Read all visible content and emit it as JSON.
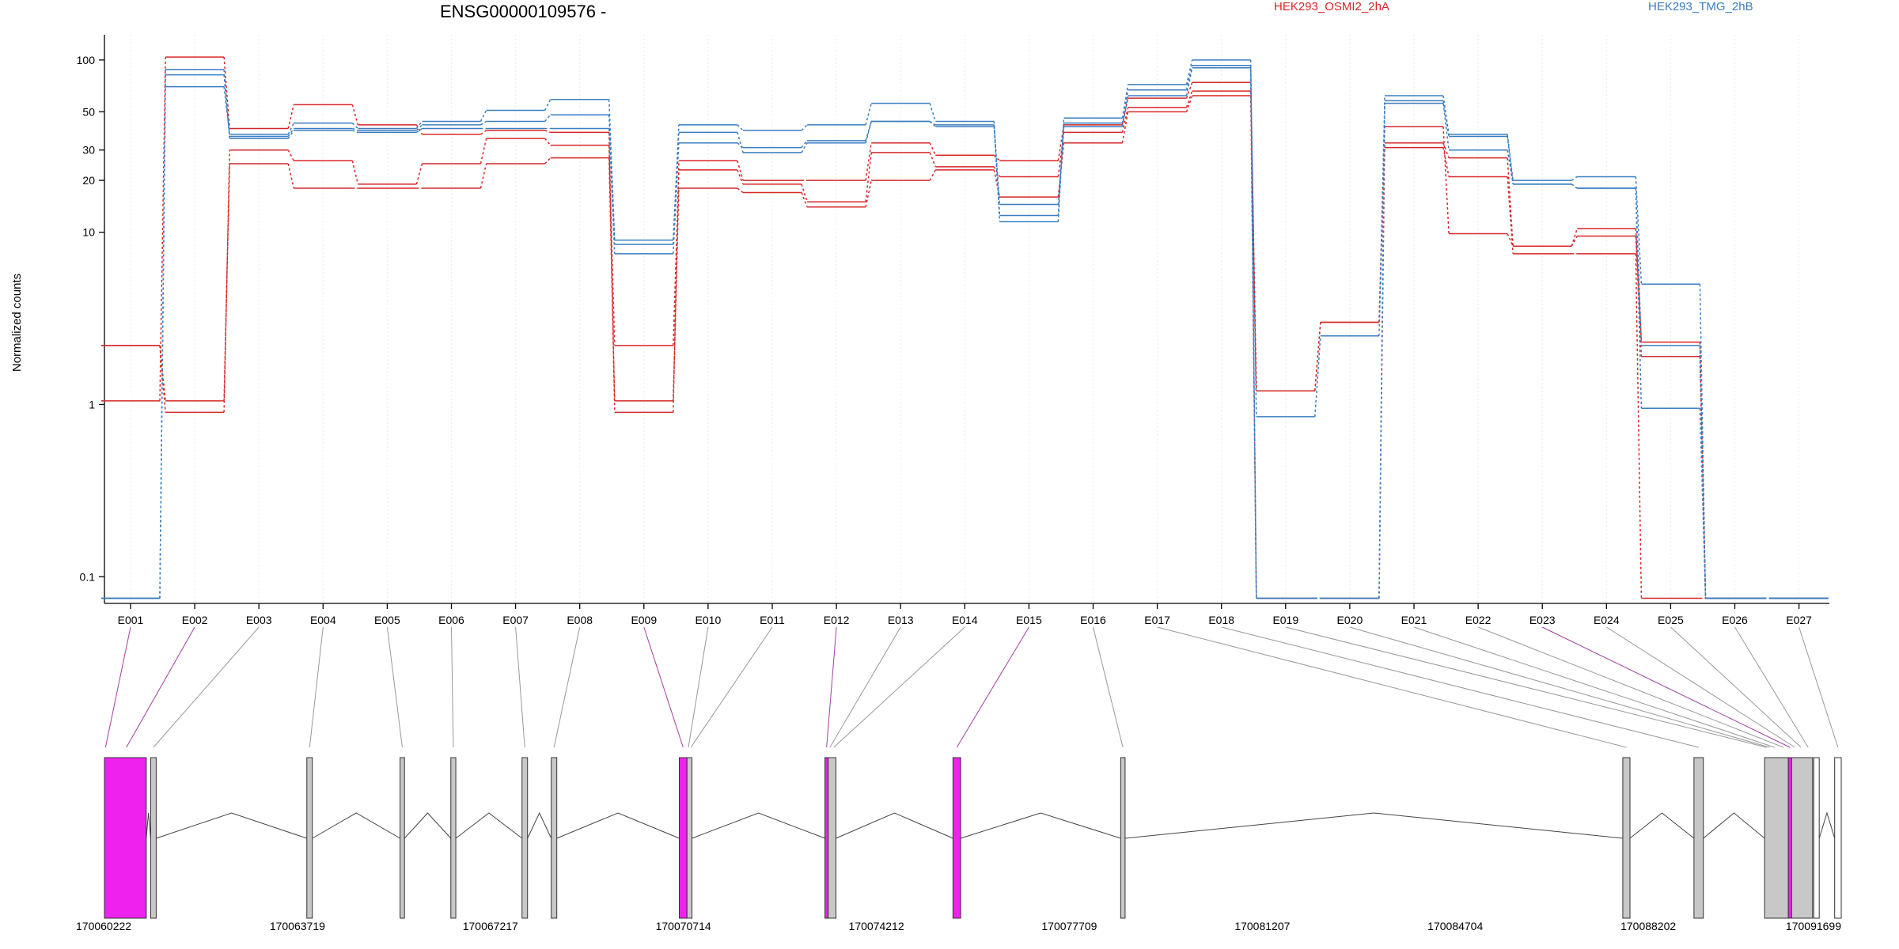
{
  "chart_data": {
    "type": "line",
    "title": "ENSG00000109576 -",
    "ylabel": "Normalized counts",
    "yscale": "log",
    "ylim": [
      0.07,
      140
    ],
    "y_ticks": [
      0.1,
      1,
      10,
      20,
      30,
      50,
      100
    ],
    "y_tick_labels": [
      "0.1",
      "1",
      "10",
      "20",
      "30",
      "50",
      "100"
    ],
    "categories": [
      "E001",
      "E002",
      "E003",
      "E004",
      "E005",
      "E006",
      "E007",
      "E008",
      "E009",
      "E010",
      "E011",
      "E012",
      "E013",
      "E014",
      "E015",
      "E016",
      "E017",
      "E018",
      "E019",
      "E020",
      "E021",
      "E022",
      "E023",
      "E024",
      "E025",
      "E026",
      "E027"
    ],
    "grid": true,
    "colors": {
      "HEK293_OSMI2_2hA": "#d62728",
      "HEK293_TMG_2hB": "#3a7dc0",
      "highlight": "#ee22ee",
      "exon": "#c8c8c8"
    },
    "legend": [
      {
        "label": "HEK293_OSMI2_2hA",
        "color": "#d62728"
      },
      {
        "label": "HEK293_TMG_2hB",
        "color": "#3a7dc0"
      }
    ],
    "series": [
      {
        "group": "HEK293_OSMI2_2hA",
        "values": [
          2.2,
          1.05,
          25,
          18,
          18,
          18,
          25,
          27,
          1.05,
          18,
          17,
          14,
          20,
          23,
          16,
          33,
          50,
          62,
          1.2,
          3.0,
          31,
          21,
          7.5,
          7.5,
          0.075,
          0.075,
          0.075
        ]
      },
      {
        "group": "HEK293_OSMI2_2hA",
        "values": [
          2.2,
          0.9,
          30,
          26,
          19,
          25,
          35,
          32,
          2.2,
          23,
          19,
          15,
          29,
          24,
          21,
          38,
          53,
          66,
          0.075,
          0.075,
          33,
          27,
          8.3,
          9.5,
          1.9,
          0.075,
          0.075
        ]
      },
      {
        "group": "HEK293_OSMI2_2hA",
        "values": [
          1.05,
          104,
          40,
          55,
          42,
          37,
          39,
          38,
          0.9,
          26,
          20,
          20,
          33,
          28,
          26,
          42,
          60,
          74,
          1.2,
          3.0,
          41,
          9.8,
          8.3,
          10.5,
          2.3,
          0.075,
          0.075
        ]
      },
      {
        "group": "HEK293_TMG_2hB",
        "values": [
          0.075,
          70,
          37,
          43,
          40,
          44,
          51,
          59,
          9.0,
          42,
          39,
          42,
          56,
          44,
          11.5,
          46,
          72,
          100,
          0.075,
          0.075,
          62,
          37,
          20,
          21,
          5.0,
          0.075,
          0.075
        ]
      },
      {
        "group": "HEK293_TMG_2hB",
        "values": [
          0.075,
          82,
          36,
          40,
          39,
          42,
          44,
          48,
          8.5,
          38,
          29,
          33,
          44,
          41,
          12.5,
          43,
          67,
          93,
          0.85,
          2.5,
          56,
          30,
          19,
          18,
          0.95,
          0.075,
          0.075
        ]
      },
      {
        "group": "HEK293_TMG_2hB",
        "values": [
          0.075,
          88,
          35,
          39,
          38,
          40,
          40,
          40,
          7.5,
          33,
          31,
          34,
          44,
          42,
          14.5,
          41,
          62,
          90,
          0.075,
          0.075,
          58,
          36,
          19,
          18,
          2.2,
          0.075,
          0.075
        ]
      }
    ],
    "genomic_axis": {
      "labels": [
        "170060222",
        "170063719",
        "170067217",
        "170070714",
        "170074212",
        "170077709",
        "170081207",
        "170084704",
        "170088202",
        "170091699"
      ]
    },
    "gene_model": {
      "highlighted_exons": [
        "E001",
        "E002",
        "E009",
        "E012",
        "E015",
        "E023"
      ],
      "exon_coords": [
        {
          "id": "E001",
          "start": 170060222,
          "end": 170060260
        },
        {
          "id": "E002",
          "start": 170060260,
          "end": 170060980
        },
        {
          "id": "E003",
          "start": 170061060,
          "end": 170061160
        },
        {
          "id": "E004",
          "start": 170063890,
          "end": 170063990
        },
        {
          "id": "E005",
          "start": 170065580,
          "end": 170065660
        },
        {
          "id": "E006",
          "start": 170066500,
          "end": 170066590
        },
        {
          "id": "E007",
          "start": 170067790,
          "end": 170067890
        },
        {
          "id": "E008",
          "start": 170068320,
          "end": 170068420
        },
        {
          "id": "E009",
          "start": 170070640,
          "end": 170070780
        },
        {
          "id": "E010",
          "start": 170070780,
          "end": 170070830
        },
        {
          "id": "E011",
          "start": 170070830,
          "end": 170070870
        },
        {
          "id": "E012",
          "start": 170073280,
          "end": 170073340
        },
        {
          "id": "E013",
          "start": 170073340,
          "end": 170073400
        },
        {
          "id": "E014",
          "start": 170073400,
          "end": 170073480
        },
        {
          "id": "E015",
          "start": 170075600,
          "end": 170075740
        },
        {
          "id": "E016",
          "start": 170078640,
          "end": 170078720
        },
        {
          "id": "E017",
          "start": 170087740,
          "end": 170087870
        },
        {
          "id": "E018",
          "start": 170089030,
          "end": 170089200
        },
        {
          "id": "E019",
          "start": 170090310,
          "end": 170090380
        },
        {
          "id": "E020",
          "start": 170090380,
          "end": 170090420
        },
        {
          "id": "E021",
          "start": 170090420,
          "end": 170090560
        },
        {
          "id": "E022",
          "start": 170090560,
          "end": 170090740
        },
        {
          "id": "E023",
          "start": 170090740,
          "end": 170090800
        },
        {
          "id": "E024",
          "start": 170090800,
          "end": 170090920
        },
        {
          "id": "E025",
          "start": 170090920,
          "end": 170091020
        },
        {
          "id": "E026",
          "start": 170091020,
          "end": 170091180
        },
        {
          "id": "E027",
          "start": 170091580,
          "end": 170091699
        }
      ],
      "blocks": [
        {
          "start": 170060222,
          "end": 170060980,
          "type": "highlight"
        },
        {
          "start": 170061060,
          "end": 170061160,
          "type": "exon"
        },
        {
          "start": 170063890,
          "end": 170063990,
          "type": "exon"
        },
        {
          "start": 170065580,
          "end": 170065660,
          "type": "exon"
        },
        {
          "start": 170066500,
          "end": 170066590,
          "type": "exon"
        },
        {
          "start": 170067790,
          "end": 170067890,
          "type": "exon"
        },
        {
          "start": 170068320,
          "end": 170068420,
          "type": "exon"
        },
        {
          "start": 170070640,
          "end": 170070780,
          "type": "highlight"
        },
        {
          "start": 170070780,
          "end": 170070870,
          "type": "exon"
        },
        {
          "start": 170073280,
          "end": 170073340,
          "type": "highlight"
        },
        {
          "start": 170073340,
          "end": 170073480,
          "type": "exon"
        },
        {
          "start": 170075600,
          "end": 170075740,
          "type": "highlight"
        },
        {
          "start": 170078640,
          "end": 170078720,
          "type": "exon"
        },
        {
          "start": 170087740,
          "end": 170087870,
          "type": "exon"
        },
        {
          "start": 170089030,
          "end": 170089200,
          "type": "exon"
        },
        {
          "start": 170090310,
          "end": 170090740,
          "type": "exon"
        },
        {
          "start": 170090740,
          "end": 170090800,
          "type": "highlight"
        },
        {
          "start": 170090800,
          "end": 170091180,
          "type": "exon"
        },
        {
          "start": 170091200,
          "end": 170091300,
          "type": "blank"
        },
        {
          "start": 170091580,
          "end": 170091699,
          "type": "blank"
        }
      ]
    }
  }
}
